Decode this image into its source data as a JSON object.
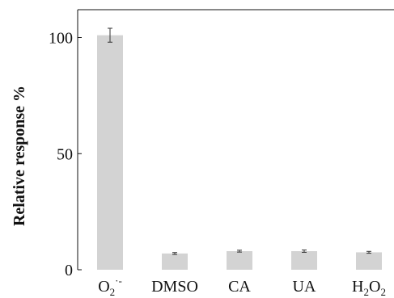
{
  "chart_data": {
    "type": "bar",
    "title": "",
    "xlabel": "",
    "ylabel": "Relative response %",
    "ylim": [
      0,
      112
    ],
    "yticks": [
      0,
      50,
      100
    ],
    "categories": [
      {
        "base": "O",
        "sub": "2",
        "sup": "·-"
      },
      {
        "base": "DMSO",
        "sub": "",
        "sup": ""
      },
      {
        "base": "CA",
        "sub": "",
        "sup": ""
      },
      {
        "base": "UA",
        "sub": "",
        "sup": ""
      },
      {
        "base": "H",
        "sub": "2",
        "base2": "O",
        "sub2": "2",
        "sup": ""
      }
    ],
    "values": [
      101,
      7,
      8,
      8,
      7.5
    ],
    "errors": [
      3,
      0.4,
      0.4,
      0.5,
      0.4
    ],
    "bar_color": "#d3d3d3",
    "axis_color": "#111111",
    "grid": false,
    "legend": "none"
  }
}
